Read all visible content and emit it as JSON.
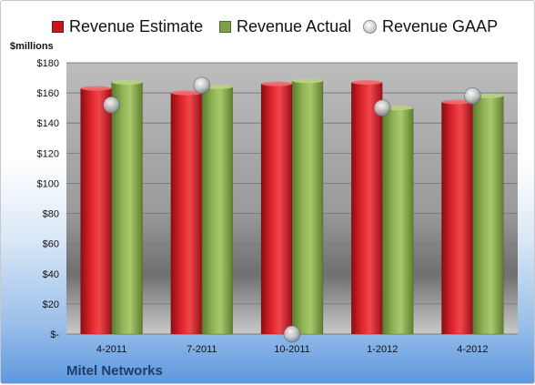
{
  "chart_data": {
    "type": "bar",
    "categories": [
      "4-2011",
      "7-2011",
      "10-2011",
      "1-2012",
      "4-2012"
    ],
    "series": [
      {
        "name": "Revenue Estimate",
        "kind": "bar",
        "color": "#c8161d",
        "values": [
          163,
          160,
          166,
          167,
          154
        ]
      },
      {
        "name": "Revenue Actual",
        "kind": "bar",
        "color": "#7ea046",
        "values": [
          167,
          164,
          168,
          150,
          158
        ]
      },
      {
        "name": "Revenue GAAP",
        "kind": "point",
        "color": "#bfc4cc",
        "values": [
          152,
          165,
          0,
          150,
          158
        ]
      }
    ],
    "ylabel": "$millions",
    "ylim": [
      0,
      180
    ],
    "yticks": [
      0,
      20,
      40,
      60,
      80,
      100,
      120,
      140,
      160,
      180
    ],
    "ytick_labels": [
      "$-",
      "$20",
      "$40",
      "$60",
      "$80",
      "$100",
      "$120",
      "$140",
      "$160",
      "$180"
    ],
    "grid": true,
    "legend_position": "top"
  },
  "footer": {
    "company": "Mitel Networks"
  }
}
